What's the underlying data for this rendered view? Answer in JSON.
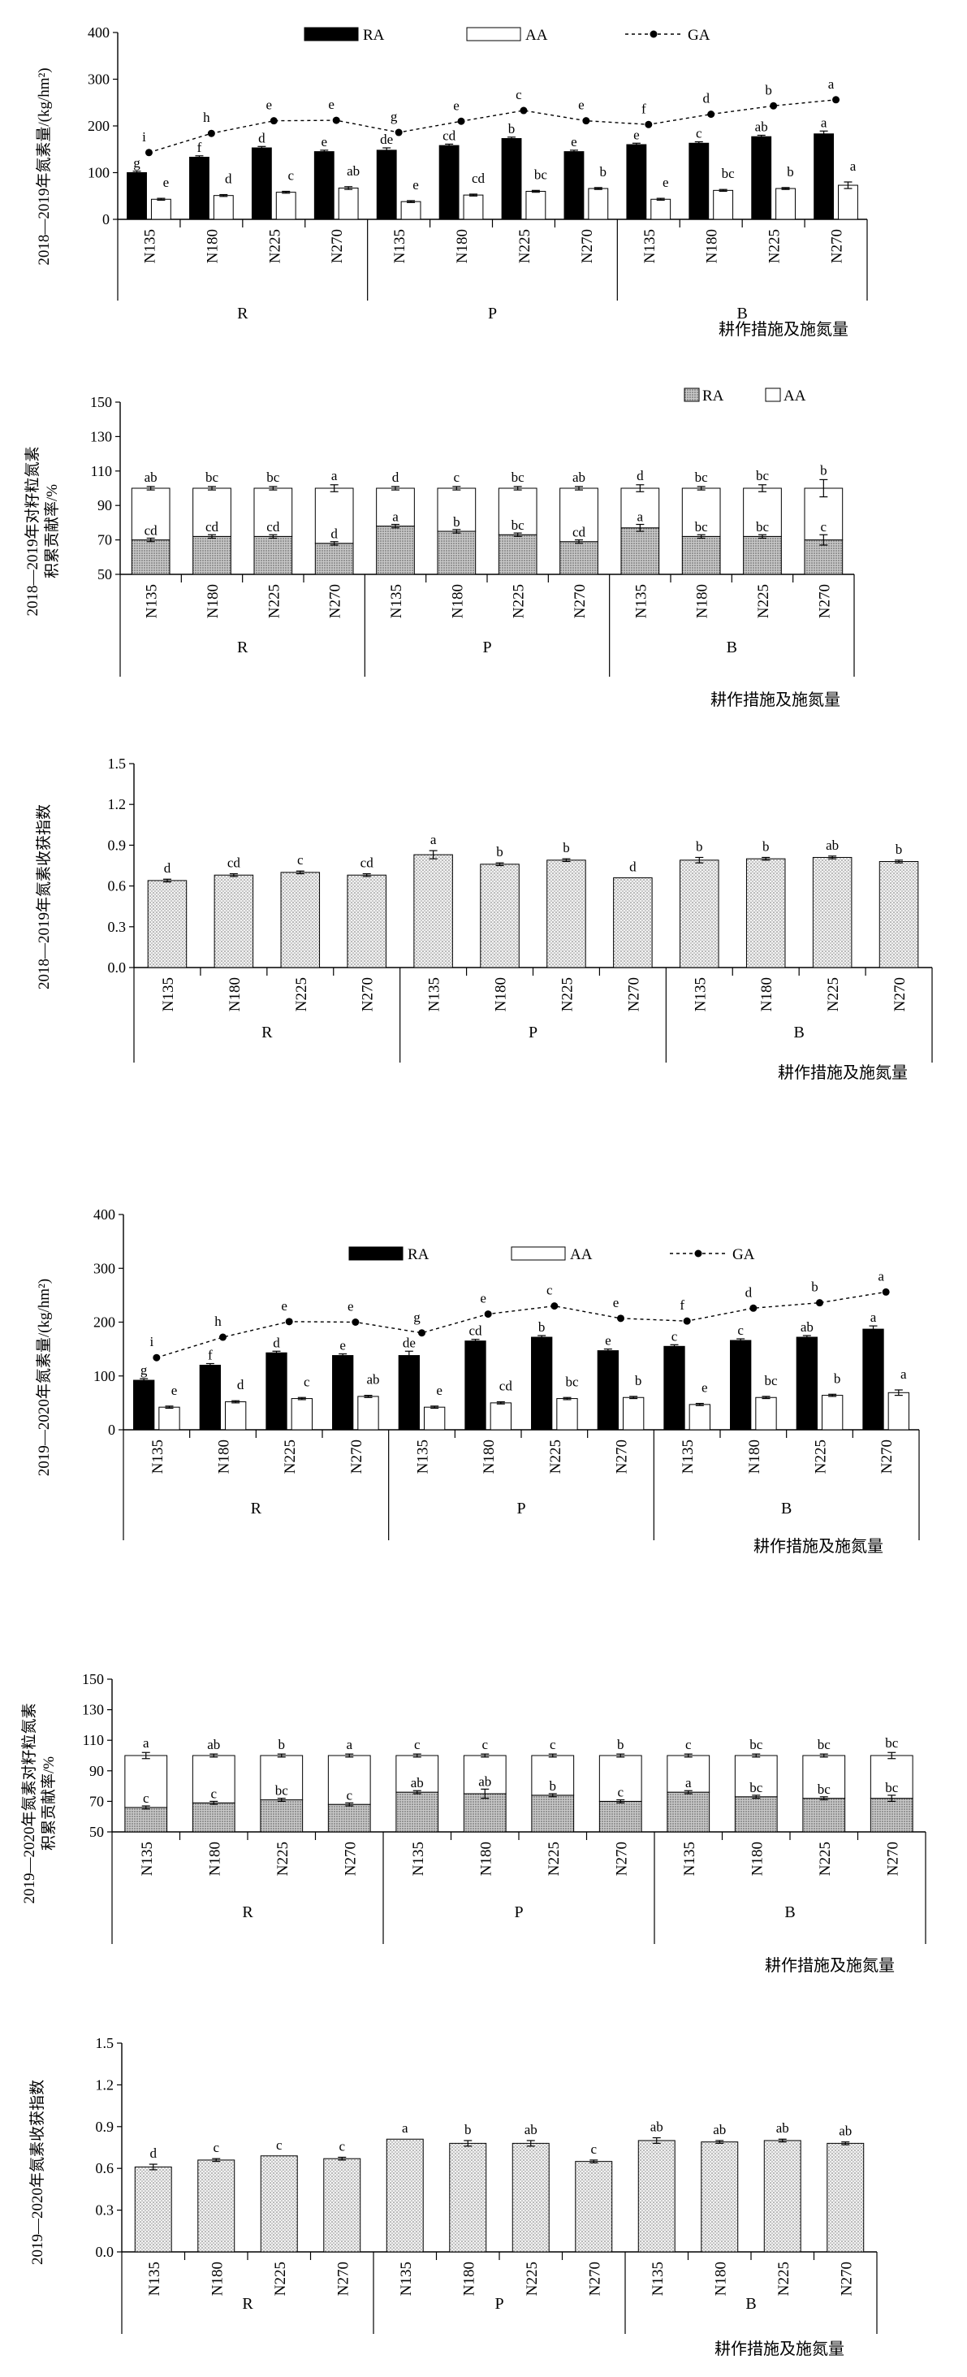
{
  "colors": {
    "ra_fill": "#000000",
    "aa_fill": "#ffffff",
    "stack_ra_fill": "#b8b8b8",
    "hi_fill": "#dcdcdc",
    "axis": "#000000"
  },
  "xlabel": "耕作措施及施氮量",
  "treatments": [
    "N135",
    "N180",
    "N225",
    "N270"
  ],
  "tillage": [
    "R",
    "P",
    "B"
  ],
  "chart_data": [
    {
      "type": "bar",
      "title": "",
      "xlabel": "耕作措施及施氮量",
      "ylabel": "2018—2019年氮素量/(kg/hm²)",
      "ylim": [
        0,
        400
      ],
      "yticks": [
        "0",
        "100",
        "200",
        "300",
        "400"
      ],
      "categories": [
        "N135",
        "N180",
        "N225",
        "N270",
        "N135",
        "N180",
        "N225",
        "N270",
        "N135",
        "N180",
        "N225",
        "N270"
      ],
      "groups": [
        "R",
        "P",
        "B"
      ],
      "legend": [
        "RA",
        "AA",
        "GA"
      ],
      "series": [
        {
          "name": "RA",
          "values": [
            100,
            133,
            153,
            145,
            148,
            158,
            173,
            145,
            160,
            163,
            177,
            183
          ],
          "errors": [
            3,
            3,
            3,
            3,
            5,
            3,
            3,
            3,
            3,
            3,
            3,
            6
          ],
          "letters": [
            "g",
            "f",
            "d",
            "e",
            "de",
            "cd",
            "b",
            "e",
            "e",
            "c",
            "ab",
            "a"
          ]
        },
        {
          "name": "AA",
          "values": [
            43,
            51,
            58,
            67,
            38,
            52,
            60,
            66,
            43,
            62,
            66,
            73
          ],
          "errors": [
            2,
            2,
            2,
            3,
            2,
            2,
            2,
            2,
            2,
            2,
            2,
            7
          ],
          "letters": [
            "e",
            "d",
            "c",
            "ab",
            "e",
            "cd",
            "bc",
            "b",
            "e",
            "bc",
            "b",
            "a"
          ]
        },
        {
          "name": "GA",
          "values": [
            143,
            184,
            211,
            212,
            186,
            210,
            233,
            211,
            203,
            225,
            243,
            256
          ],
          "letters": [
            "i",
            "h",
            "e",
            "e",
            "g",
            "e",
            "c",
            "e",
            "f",
            "d",
            "b",
            "a"
          ]
        }
      ]
    },
    {
      "type": "bar",
      "title": "",
      "xlabel": "耕作措施及施氮量",
      "ylabel": "2018—2019年对籽粒氮素积累贡献率/%",
      "ylim": [
        50,
        150
      ],
      "yticks": [
        "50",
        "70",
        "90",
        "110",
        "130",
        "150"
      ],
      "categories": [
        "N135",
        "N180",
        "N225",
        "N270",
        "N135",
        "N180",
        "N225",
        "N270",
        "N135",
        "N180",
        "N225",
        "N270"
      ],
      "groups": [
        "R",
        "P",
        "B"
      ],
      "legend": [
        "RA",
        "AA"
      ],
      "series": [
        {
          "name": "RA",
          "values": [
            70,
            72,
            72,
            68,
            78,
            75,
            73,
            69,
            77,
            72,
            72,
            70
          ],
          "errors": [
            1,
            1,
            1,
            1,
            1,
            1,
            1,
            1,
            2,
            1,
            1,
            3
          ],
          "letters": [
            "cd",
            "cd",
            "cd",
            "d",
            "a",
            "b",
            "bc",
            "cd",
            "a",
            "bc",
            "bc",
            "c"
          ]
        },
        {
          "name": "AA",
          "values": [
            30,
            28,
            28,
            32,
            22,
            25,
            27,
            31,
            23,
            28,
            28,
            30
          ],
          "totals": [
            100,
            100,
            100,
            100,
            100,
            100,
            100,
            100,
            100,
            100,
            100,
            100
          ],
          "errors": [
            1,
            1,
            1,
            2,
            1,
            1,
            1,
            1,
            2,
            1,
            2,
            5
          ],
          "letters": [
            "ab",
            "bc",
            "bc",
            "a",
            "d",
            "c",
            "bc",
            "ab",
            "d",
            "bc",
            "bc",
            "b"
          ]
        }
      ]
    },
    {
      "type": "bar",
      "title": "",
      "xlabel": "耕作措施及施氮量",
      "ylabel": "2018—2019年氮素收获指数",
      "ylim": [
        0,
        1.5
      ],
      "yticks": [
        "0.0",
        "0.3",
        "0.6",
        "0.9",
        "1.2",
        "1.5"
      ],
      "categories": [
        "N135",
        "N180",
        "N225",
        "N270",
        "N135",
        "N180",
        "N225",
        "N270",
        "N135",
        "N180",
        "N225",
        "N270"
      ],
      "groups": [
        "R",
        "P",
        "B"
      ],
      "series": [
        {
          "name": "",
          "values": [
            0.64,
            0.68,
            0.7,
            0.68,
            0.83,
            0.76,
            0.79,
            0.66,
            0.79,
            0.8,
            0.81,
            0.78
          ],
          "errors": [
            0.01,
            0.01,
            0.01,
            0.01,
            0.03,
            0.01,
            0.01,
            0,
            0.02,
            0.01,
            0.01,
            0.01
          ],
          "letters": [
            "d",
            "cd",
            "c",
            "cd",
            "a",
            "b",
            "b",
            "d",
            "b",
            "b",
            "ab",
            "b"
          ]
        }
      ]
    },
    {
      "type": "bar",
      "title": "",
      "xlabel": "耕作措施及施氮量",
      "ylabel": "2019—2020年氮素量/(kg/hm²)",
      "ylim": [
        0,
        400
      ],
      "yticks": [
        "0",
        "100",
        "200",
        "300",
        "400"
      ],
      "categories": [
        "N135",
        "N180",
        "N225",
        "N270",
        "N135",
        "N180",
        "N225",
        "N270",
        "N135",
        "N180",
        "N225",
        "N270"
      ],
      "groups": [
        "R",
        "P",
        "B"
      ],
      "legend": [
        "RA",
        "AA",
        "GA"
      ],
      "series": [
        {
          "name": "RA",
          "values": [
            92,
            120,
            143,
            138,
            138,
            165,
            172,
            147,
            155,
            166,
            172,
            187
          ],
          "errors": [
            3,
            3,
            3,
            3,
            8,
            3,
            3,
            3,
            3,
            3,
            3,
            6
          ],
          "letters": [
            "g",
            "f",
            "d",
            "e",
            "de",
            "cd",
            "b",
            "e",
            "c",
            "c",
            "ab",
            "a"
          ]
        },
        {
          "name": "AA",
          "values": [
            42,
            52,
            58,
            62,
            42,
            50,
            58,
            60,
            47,
            60,
            64,
            69
          ],
          "errors": [
            2,
            2,
            2,
            2,
            2,
            2,
            2,
            2,
            2,
            2,
            2,
            5
          ],
          "letters": [
            "e",
            "d",
            "c",
            "ab",
            "e",
            "cd",
            "bc",
            "b",
            "e",
            "bc",
            "b",
            "a"
          ]
        },
        {
          "name": "GA",
          "values": [
            134,
            172,
            201,
            200,
            180,
            215,
            230,
            207,
            202,
            226,
            236,
            256
          ],
          "letters": [
            "i",
            "h",
            "e",
            "e",
            "g",
            "e",
            "c",
            "e",
            "f",
            "d",
            "b",
            "a"
          ]
        }
      ]
    },
    {
      "type": "bar",
      "title": "",
      "xlabel": "耕作措施及施氮量",
      "ylabel": "2019—2020年氮素对籽粒氮素积累贡献率/%",
      "ylim": [
        50,
        150
      ],
      "yticks": [
        "50",
        "70",
        "90",
        "110",
        "130",
        "150"
      ],
      "categories": [
        "N135",
        "N180",
        "N225",
        "N270",
        "N135",
        "N180",
        "N225",
        "N270",
        "N135",
        "N180",
        "N225",
        "N270"
      ],
      "groups": [
        "R",
        "P",
        "B"
      ],
      "series": [
        {
          "name": "RA",
          "values": [
            66,
            69,
            71,
            68,
            76,
            75,
            74,
            70,
            76,
            73,
            72,
            72
          ],
          "errors": [
            1,
            1,
            1,
            1,
            1,
            3,
            1,
            1,
            1,
            1,
            1,
            2
          ],
          "letters": [
            "c",
            "c",
            "bc",
            "c",
            "ab",
            "ab",
            "b",
            "c",
            "a",
            "bc",
            "bc",
            "bc"
          ]
        },
        {
          "name": "AA",
          "values": [
            34,
            31,
            29,
            32,
            24,
            25,
            26,
            30,
            24,
            27,
            28,
            28
          ],
          "totals": [
            100,
            100,
            100,
            100,
            100,
            100,
            100,
            100,
            100,
            100,
            100,
            100
          ],
          "errors": [
            2,
            1,
            1,
            1,
            1,
            1,
            1,
            1,
            1,
            1,
            1,
            2
          ],
          "letters": [
            "a",
            "ab",
            "b",
            "a",
            "c",
            "c",
            "c",
            "b",
            "c",
            "bc",
            "bc",
            "bc"
          ]
        }
      ]
    },
    {
      "type": "bar",
      "title": "",
      "xlabel": "耕作措施及施氮量",
      "ylabel": "2019—2020年氮素收获指数",
      "ylim": [
        0,
        1.5
      ],
      "yticks": [
        "0.0",
        "0.3",
        "0.6",
        "0.9",
        "1.2",
        "1.5"
      ],
      "categories": [
        "N135",
        "N180",
        "N225",
        "N270",
        "N135",
        "N180",
        "N225",
        "N270",
        "N135",
        "N180",
        "N225",
        "N270"
      ],
      "groups": [
        "R",
        "P",
        "B"
      ],
      "series": [
        {
          "name": "",
          "values": [
            0.61,
            0.66,
            0.69,
            0.67,
            0.81,
            0.78,
            0.78,
            0.65,
            0.8,
            0.79,
            0.8,
            0.78
          ],
          "errors": [
            0.02,
            0.01,
            0,
            0.01,
            0,
            0.02,
            0.02,
            0.01,
            0.02,
            0.01,
            0.01,
            0.01
          ],
          "letters": [
            "d",
            "c",
            "c",
            "c",
            "a",
            "b",
            "ab",
            "c",
            "ab",
            "ab",
            "ab",
            "ab"
          ]
        }
      ]
    }
  ]
}
